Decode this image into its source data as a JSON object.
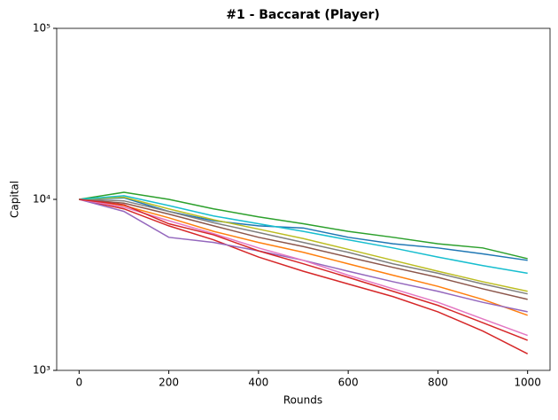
{
  "chart_data": {
    "type": "line",
    "title": "#1 - Baccarat (Player)",
    "x_label": "Rounds",
    "y_label": "Capital",
    "x": [
      0,
      100,
      200,
      300,
      400,
      500,
      600,
      700,
      800,
      900,
      1000
    ],
    "series": [
      {
        "color": "#1f77b4",
        "values": [
          10000,
          10200,
          8500,
          7500,
          7000,
          6800,
          6000,
          5500,
          5200,
          4800,
          4400
        ]
      },
      {
        "color": "#ff7f0e",
        "values": [
          10000,
          9200,
          7800,
          6500,
          5600,
          4900,
          4200,
          3600,
          3100,
          2600,
          2100
        ]
      },
      {
        "color": "#2ca02c",
        "values": [
          10000,
          11000,
          10000,
          8800,
          7900,
          7200,
          6500,
          6000,
          5500,
          5200,
          4500
        ]
      },
      {
        "color": "#d62728",
        "values": [
          10000,
          8800,
          7000,
          5800,
          4600,
          3800,
          3200,
          2700,
          2200,
          1700,
          1250
        ]
      },
      {
        "color": "#9467bd",
        "values": [
          10000,
          8500,
          6000,
          5600,
          5000,
          4400,
          3800,
          3300,
          2900,
          2500,
          2200
        ]
      },
      {
        "color": "#8c564b",
        "values": [
          10000,
          9500,
          8200,
          7000,
          6000,
          5300,
          4600,
          4000,
          3500,
          3000,
          2600
        ]
      },
      {
        "color": "#e377c2",
        "values": [
          10000,
          9000,
          7500,
          6300,
          5200,
          4400,
          3600,
          3000,
          2500,
          2000,
          1600
        ]
      },
      {
        "color": "#7f7f7f",
        "values": [
          10000,
          9800,
          8500,
          7300,
          6400,
          5600,
          4900,
          4200,
          3700,
          3200,
          2800
        ]
      },
      {
        "color": "#bcbd22",
        "values": [
          10000,
          10300,
          8800,
          7600,
          6700,
          5900,
          5100,
          4400,
          3800,
          3300,
          2900
        ]
      },
      {
        "color": "#17becf",
        "values": [
          10000,
          10500,
          9200,
          8000,
          7200,
          6500,
          5800,
          5200,
          4600,
          4100,
          3700
        ]
      },
      {
        "color": "#d62728",
        "values": [
          10000,
          9300,
          7200,
          6200,
          5000,
          4200,
          3500,
          2900,
          2400,
          1900,
          1500
        ]
      }
    ],
    "xlim": [
      -50,
      1050
    ],
    "xticks": [
      0,
      200,
      400,
      600,
      800,
      1000
    ],
    "ylim": [
      1000,
      100000
    ],
    "y_scale": "log",
    "yticks": [
      {
        "value": 1000,
        "label": "10³"
      },
      {
        "value": 10000,
        "label": "10⁴"
      },
      {
        "value": 100000,
        "label": "10⁵"
      }
    ],
    "grid": false
  }
}
